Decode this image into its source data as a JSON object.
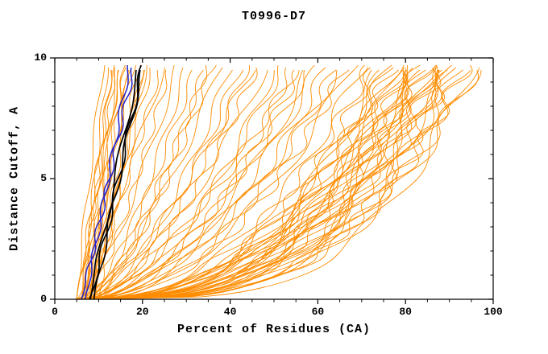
{
  "chart_data": {
    "type": "line",
    "title": "T0996-D7",
    "xlabel": "Percent of Residues (CA)",
    "ylabel": "Distance Cutoff, A",
    "xlim": [
      0,
      100
    ],
    "ylim": [
      0,
      10
    ],
    "x_ticks": [
      0,
      20,
      40,
      60,
      80,
      100
    ],
    "y_ticks": [
      0,
      5,
      10
    ],
    "x_minor_step": 5,
    "y_minor_step": 1,
    "grid": false,
    "legend": "none",
    "curve_y_max": 9.7,
    "color_map": {
      "o": "#FF8C00",
      "b": "#2222CC",
      "k": "#000000"
    },
    "series_colors": {
      "orange": "#FF8C00",
      "blue": "#2222CC",
      "black": "#000000"
    },
    "curves": [
      {
        "c": "o",
        "x0": 5,
        "xe": 11,
        "p": 1.1
      },
      {
        "c": "o",
        "x0": 6,
        "xe": 12,
        "p": 1.0
      },
      {
        "c": "o",
        "x0": 5,
        "xe": 13,
        "p": 0.95
      },
      {
        "c": "o",
        "x0": 7,
        "xe": 13,
        "p": 1.1
      },
      {
        "c": "o",
        "x0": 6,
        "xe": 14,
        "p": 1.05
      },
      {
        "c": "o",
        "x0": 8,
        "xe": 14,
        "p": 0.9
      },
      {
        "c": "o",
        "x0": 5,
        "xe": 15,
        "p": 1.0
      },
      {
        "c": "o",
        "x0": 7,
        "xe": 15,
        "p": 1.15
      },
      {
        "c": "o",
        "x0": 6,
        "xe": 16,
        "p": 0.95
      },
      {
        "c": "o",
        "x0": 8,
        "xe": 16,
        "p": 1.05
      },
      {
        "c": "o",
        "x0": 9,
        "xe": 17,
        "p": 1.0
      },
      {
        "c": "o",
        "x0": 6,
        "xe": 17,
        "p": 0.85
      },
      {
        "c": "o",
        "x0": 7,
        "xe": 18,
        "p": 1.1
      },
      {
        "c": "o",
        "x0": 8,
        "xe": 19,
        "p": 0.95
      },
      {
        "c": "o",
        "x0": 10,
        "xe": 20,
        "p": 1.0
      },
      {
        "c": "o",
        "x0": 7,
        "xe": 20,
        "p": 0.9
      },
      {
        "c": "o",
        "x0": 9,
        "xe": 21,
        "p": 1.05
      },
      {
        "c": "o",
        "x0": 8,
        "xe": 22,
        "p": 0.95
      },
      {
        "c": "o",
        "x0": 6,
        "xe": 24,
        "p": 0.8
      },
      {
        "c": "o",
        "x0": 7,
        "xe": 26,
        "p": 0.75
      },
      {
        "c": "o",
        "x0": 5,
        "xe": 28,
        "p": 0.7
      },
      {
        "c": "o",
        "x0": 8,
        "xe": 30,
        "p": 0.72
      },
      {
        "c": "o",
        "x0": 6,
        "xe": 32,
        "p": 0.68
      },
      {
        "c": "o",
        "x0": 9,
        "xe": 34,
        "p": 0.7
      },
      {
        "c": "o",
        "x0": 7,
        "xe": 36,
        "p": 0.65
      },
      {
        "c": "o",
        "x0": 5,
        "xe": 38,
        "p": 0.66
      },
      {
        "c": "o",
        "x0": 8,
        "xe": 40,
        "p": 0.62
      },
      {
        "c": "o",
        "x0": 6,
        "xe": 42,
        "p": 0.6
      },
      {
        "c": "o",
        "x0": 9,
        "xe": 44,
        "p": 0.63
      },
      {
        "c": "o",
        "x0": 7,
        "xe": 46,
        "p": 0.58
      },
      {
        "c": "o",
        "x0": 5,
        "xe": 48,
        "p": 0.6
      },
      {
        "c": "o",
        "x0": 8,
        "xe": 50,
        "p": 0.55
      },
      {
        "c": "o",
        "x0": 6,
        "xe": 52,
        "p": 0.57
      },
      {
        "c": "o",
        "x0": 9,
        "xe": 54,
        "p": 0.52
      },
      {
        "c": "o",
        "x0": 7,
        "xe": 56,
        "p": 0.54
      },
      {
        "c": "o",
        "x0": 5,
        "xe": 58,
        "p": 0.5
      },
      {
        "c": "o",
        "x0": 8,
        "xe": 60,
        "p": 0.52
      },
      {
        "c": "o",
        "x0": 6,
        "xe": 62,
        "p": 0.48
      },
      {
        "c": "o",
        "x0": 9,
        "xe": 64,
        "p": 0.5
      },
      {
        "c": "o",
        "x0": 7,
        "xe": 66,
        "p": 0.46
      },
      {
        "c": "o",
        "x0": 5,
        "xe": 68,
        "p": 0.48
      },
      {
        "c": "o",
        "x0": 8,
        "xe": 70,
        "p": 0.44
      },
      {
        "c": "o",
        "x0": 6,
        "xe": 45,
        "p": 0.7
      },
      {
        "c": "o",
        "x0": 7,
        "xe": 55,
        "p": 0.65
      },
      {
        "c": "o",
        "x0": 9,
        "xe": 35,
        "p": 0.8
      },
      {
        "c": "o",
        "x0": 5,
        "xe": 25,
        "p": 0.9
      },
      {
        "c": "o",
        "x0": 6,
        "xe": 65,
        "p": 0.55
      },
      {
        "c": "o",
        "x0": 8,
        "xe": 58,
        "p": 0.6
      },
      {
        "c": "o",
        "x0": 5,
        "xe": 72,
        "p": 0.42
      },
      {
        "c": "o",
        "x0": 6,
        "xe": 73,
        "p": 0.4
      },
      {
        "c": "o",
        "x0": 7,
        "xe": 74,
        "p": 0.38
      },
      {
        "c": "o",
        "x0": 5,
        "xe": 75,
        "p": 0.41
      },
      {
        "c": "o",
        "x0": 6,
        "xe": 76,
        "p": 0.36
      },
      {
        "c": "o",
        "x0": 8,
        "xe": 76,
        "p": 0.43
      },
      {
        "c": "o",
        "x0": 5,
        "xe": 77,
        "p": 0.39
      },
      {
        "c": "o",
        "x0": 7,
        "xe": 78,
        "p": 0.35
      },
      {
        "c": "o",
        "x0": 6,
        "xe": 78,
        "p": 0.42
      },
      {
        "c": "o",
        "x0": 8,
        "xe": 79,
        "p": 0.37
      },
      {
        "c": "o",
        "x0": 5,
        "xe": 80,
        "p": 0.4
      },
      {
        "c": "o",
        "x0": 7,
        "xe": 80,
        "p": 0.33
      },
      {
        "c": "o",
        "x0": 6,
        "xe": 81,
        "p": 0.38
      },
      {
        "c": "o",
        "x0": 8,
        "xe": 81,
        "p": 0.43
      },
      {
        "c": "o",
        "x0": 5,
        "xe": 82,
        "p": 0.35
      },
      {
        "c": "o",
        "x0": 7,
        "xe": 82,
        "p": 0.4
      },
      {
        "c": "o",
        "x0": 6,
        "xe": 83,
        "p": 0.32
      },
      {
        "c": "o",
        "x0": 8,
        "xe": 83,
        "p": 0.38
      },
      {
        "c": "o",
        "x0": 5,
        "xe": 84,
        "p": 0.36
      },
      {
        "c": "o",
        "x0": 7,
        "xe": 84,
        "p": 0.42
      },
      {
        "c": "o",
        "x0": 6,
        "xe": 85,
        "p": 0.33
      },
      {
        "c": "o",
        "x0": 8,
        "xe": 85,
        "p": 0.39
      },
      {
        "c": "o",
        "x0": 5,
        "xe": 86,
        "p": 0.35
      },
      {
        "c": "o",
        "x0": 7,
        "xe": 86,
        "p": 0.3
      },
      {
        "c": "o",
        "x0": 6,
        "xe": 87,
        "p": 0.37
      },
      {
        "c": "o",
        "x0": 8,
        "xe": 87,
        "p": 0.32
      },
      {
        "c": "o",
        "x0": 5,
        "xe": 88,
        "p": 0.34
      },
      {
        "c": "o",
        "x0": 7,
        "xe": 88,
        "p": 0.39
      },
      {
        "c": "o",
        "x0": 6,
        "xe": 89,
        "p": 0.31
      },
      {
        "c": "o",
        "x0": 8,
        "xe": 89,
        "p": 0.36
      },
      {
        "c": "o",
        "x0": 5,
        "xe": 90,
        "p": 0.33
      },
      {
        "c": "o",
        "x0": 7,
        "xe": 90,
        "p": 0.28
      },
      {
        "c": "o",
        "x0": 6,
        "xe": 91,
        "p": 0.35
      },
      {
        "c": "o",
        "x0": 8,
        "xe": 91,
        "p": 0.3
      },
      {
        "c": "o",
        "x0": 5,
        "xe": 92,
        "p": 0.32
      },
      {
        "c": "o",
        "x0": 7,
        "xe": 93,
        "p": 0.29
      },
      {
        "c": "o",
        "x0": 6,
        "xe": 94,
        "p": 0.31
      },
      {
        "c": "o",
        "x0": 8,
        "xe": 95,
        "p": 0.27
      },
      {
        "c": "o",
        "x0": 5,
        "xe": 96,
        "p": 0.3
      },
      {
        "c": "o",
        "x0": 6,
        "xe": 96,
        "p": 0.34
      },
      {
        "c": "b",
        "x0": 7,
        "xe": 17,
        "p": 1.0
      },
      {
        "c": "b",
        "x0": 6,
        "xe": 18,
        "p": 0.95
      },
      {
        "c": "k",
        "x0": 8,
        "xe": 19,
        "p": 1.0
      },
      {
        "c": "k",
        "x0": 9,
        "xe": 20,
        "p": 1.05
      },
      {
        "c": "k",
        "x0": 8,
        "xe": 20,
        "p": 0.92
      }
    ]
  }
}
